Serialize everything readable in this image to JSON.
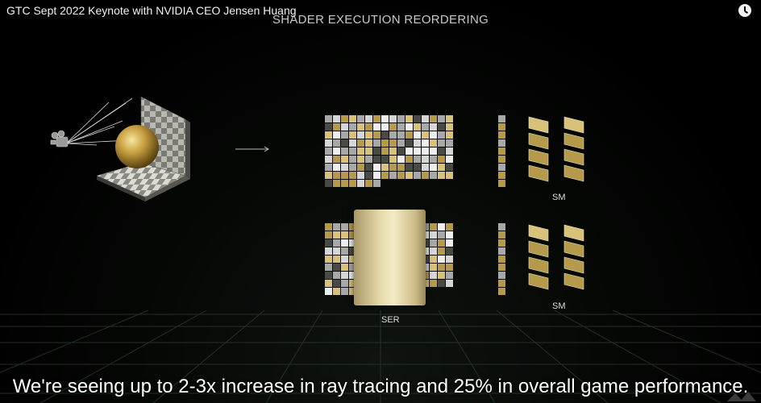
{
  "video": {
    "title": "GTC Sept 2022 Keynote with NVIDIA CEO Jensen Huang",
    "watch_later_icon": "clock-icon"
  },
  "slide": {
    "heading": "SHADER EXECUTION REORDERING",
    "labels": {
      "sm_top": "SM",
      "sm_bottom": "SM",
      "ser": "SER"
    }
  },
  "caption": "We're seeing up to 2-3x increase in ray tracing and 25% in overall game performance.",
  "colors": {
    "gold": "#b49a4a",
    "gold_light": "#d8c27a",
    "silver": "#a8a8a8",
    "silver_light": "#d6d6d6",
    "dark": "#4a4a44",
    "white": "#eeeeee"
  }
}
